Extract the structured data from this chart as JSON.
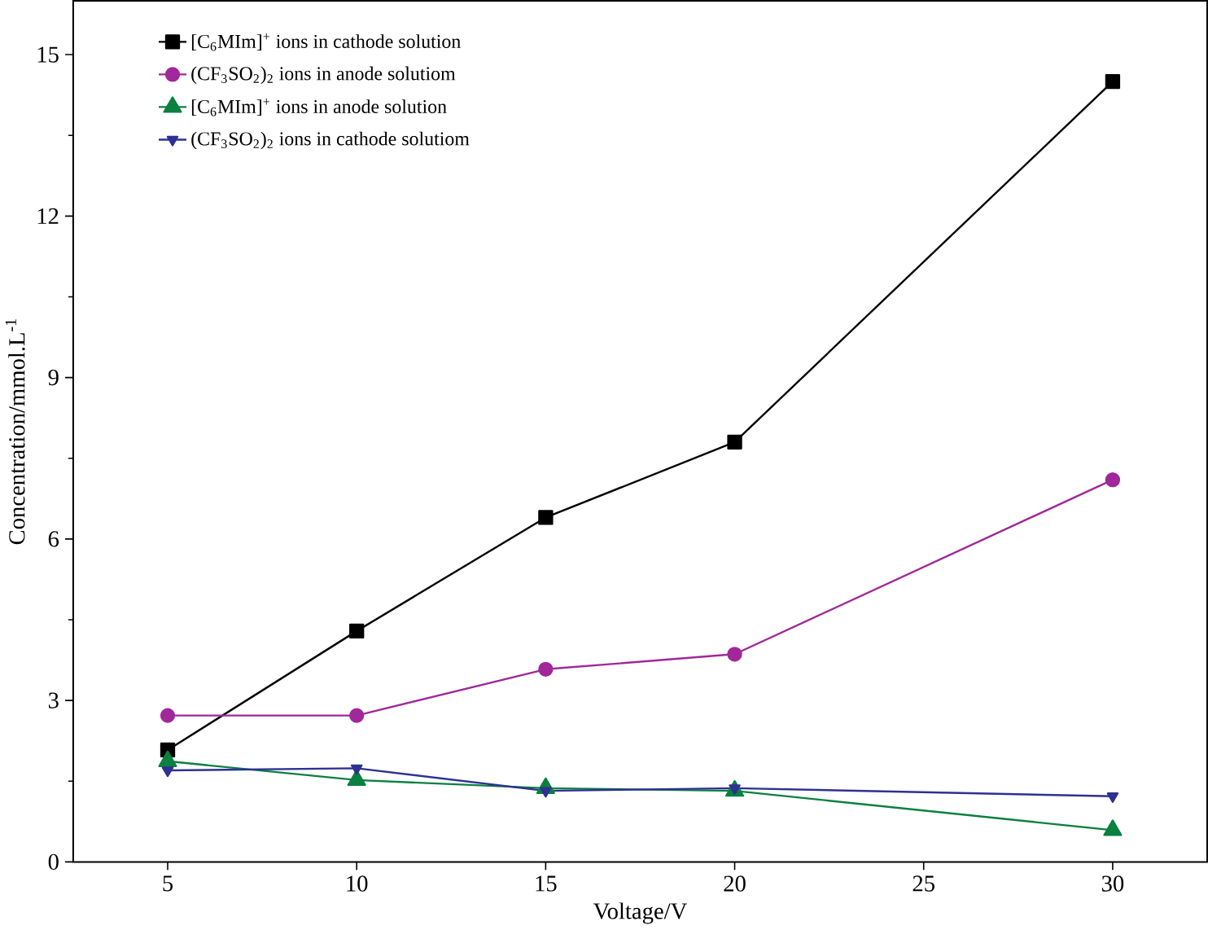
{
  "chart_data": {
    "type": "line",
    "xlabel": "Voltage/V",
    "ylabel": "Concentration/mmol.L$^{-1}$",
    "x": [
      5,
      10,
      15,
      20,
      30
    ],
    "series": [
      {
        "name": "[C$_{6}$MIm]$^{+}$ ions in cathode solution",
        "color": "#000000",
        "marker": "square",
        "values": [
          2.08,
          4.29,
          6.4,
          7.8,
          14.5
        ]
      },
      {
        "name": "(CF$_{3}$SO$_{2}$)$_{2}$ ions in anode solutiom",
        "color": "#a0289a",
        "marker": "circle",
        "values": [
          2.72,
          2.72,
          3.58,
          3.86,
          7.1
        ]
      },
      {
        "name": "[C$_{6}$MIm]$^{+}$ ions in anode solution",
        "color": "#0b8040",
        "marker": "triangle",
        "values": [
          1.87,
          1.52,
          1.37,
          1.32,
          0.59
        ]
      },
      {
        "name": "(CF$_{3}$SO$_{2}$)$_{2}$ ions in cathode solutiom",
        "color": "#2e3192",
        "marker": "triangle-down",
        "values": [
          1.7,
          1.74,
          1.32,
          1.37,
          1.22
        ]
      }
    ],
    "xlim": [
      2.5,
      32.5
    ],
    "ylim": [
      0,
      16
    ],
    "xticks": [
      5,
      10,
      15,
      20,
      25,
      30
    ],
    "yticks": [
      0,
      3,
      6,
      9,
      12,
      15
    ],
    "grid": false,
    "legend": "top left",
    "line_style": "solid"
  }
}
